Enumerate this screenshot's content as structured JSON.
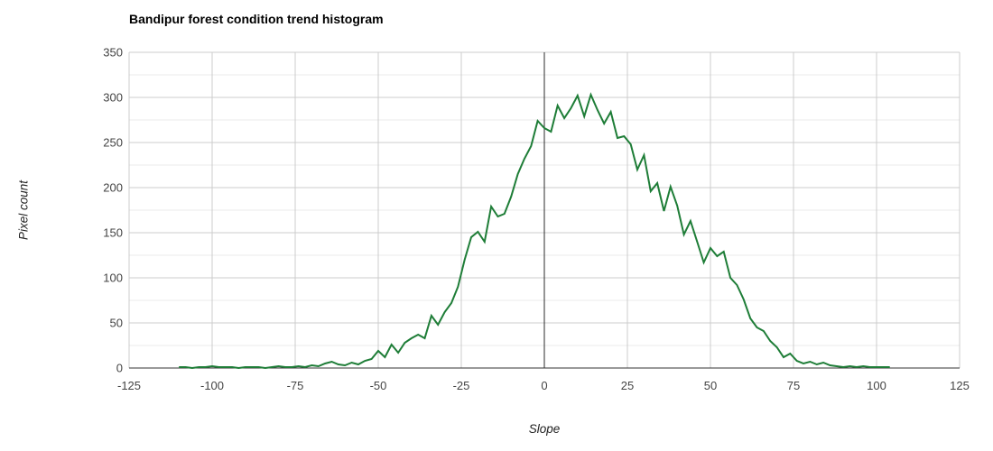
{
  "chart_data": {
    "type": "line",
    "title": "Bandipur forest condition trend histogram",
    "xlabel": "Slope",
    "ylabel": "Pixel count",
    "xlim": [
      -125,
      125
    ],
    "ylim": [
      0,
      350
    ],
    "x_ticks": [
      -125,
      -100,
      -75,
      -50,
      -25,
      0,
      25,
      50,
      75,
      100,
      125
    ],
    "y_ticks": [
      0,
      50,
      100,
      150,
      200,
      250,
      300,
      350
    ],
    "grid": true,
    "minor_y_gridlines": true,
    "zero_vline": true,
    "legend": "none",
    "series": [
      {
        "name": "Pixel count",
        "color": "#1e7d37",
        "x": [
          -110,
          -108,
          -106,
          -104,
          -102,
          -100,
          -98,
          -96,
          -94,
          -92,
          -90,
          -88,
          -86,
          -84,
          -82,
          -80,
          -78,
          -76,
          -74,
          -72,
          -70,
          -68,
          -66,
          -64,
          -62,
          -60,
          -58,
          -56,
          -54,
          -52,
          -50,
          -48,
          -46,
          -44,
          -42,
          -40,
          -38,
          -36,
          -34,
          -32,
          -30,
          -28,
          -26,
          -24,
          -22,
          -20,
          -18,
          -16,
          -14,
          -12,
          -10,
          -8,
          -6,
          -4,
          -2,
          0,
          2,
          4,
          6,
          8,
          10,
          12,
          14,
          16,
          18,
          20,
          22,
          24,
          26,
          28,
          30,
          32,
          34,
          36,
          38,
          40,
          42,
          44,
          46,
          48,
          50,
          52,
          54,
          56,
          58,
          60,
          62,
          64,
          66,
          68,
          70,
          72,
          74,
          76,
          78,
          80,
          82,
          84,
          86,
          88,
          90,
          92,
          94,
          96,
          98,
          100,
          102,
          104
        ],
        "y": [
          1,
          1,
          0,
          1,
          1,
          2,
          1,
          1,
          1,
          0,
          1,
          1,
          1,
          0,
          1,
          2,
          1,
          1,
          2,
          1,
          3,
          2,
          5,
          7,
          4,
          3,
          6,
          4,
          8,
          10,
          19,
          12,
          26,
          17,
          28,
          33,
          37,
          33,
          58,
          48,
          62,
          72,
          90,
          120,
          145,
          151,
          140,
          179,
          168,
          171,
          190,
          215,
          232,
          246,
          274,
          266,
          262,
          291,
          277,
          288,
          302,
          279,
          303,
          286,
          271,
          284,
          255,
          257,
          248,
          220,
          236,
          196,
          205,
          174,
          201,
          180,
          148,
          163,
          140,
          117,
          133,
          124,
          129,
          100,
          92,
          76,
          55,
          45,
          41,
          30,
          23,
          12,
          16,
          8,
          5,
          7,
          4,
          6,
          3,
          2,
          1,
          2,
          1,
          2,
          1,
          1,
          1,
          1
        ]
      }
    ],
    "colors": {
      "line": "#1e7d37",
      "gridline_major": "#cccccc",
      "gridline_minor": "#ebebeb",
      "axis_line": "#333333",
      "zero_line": "#2b2b2b",
      "tick_label": "#444444",
      "title": "#000000",
      "axis_title": "#222222"
    }
  }
}
